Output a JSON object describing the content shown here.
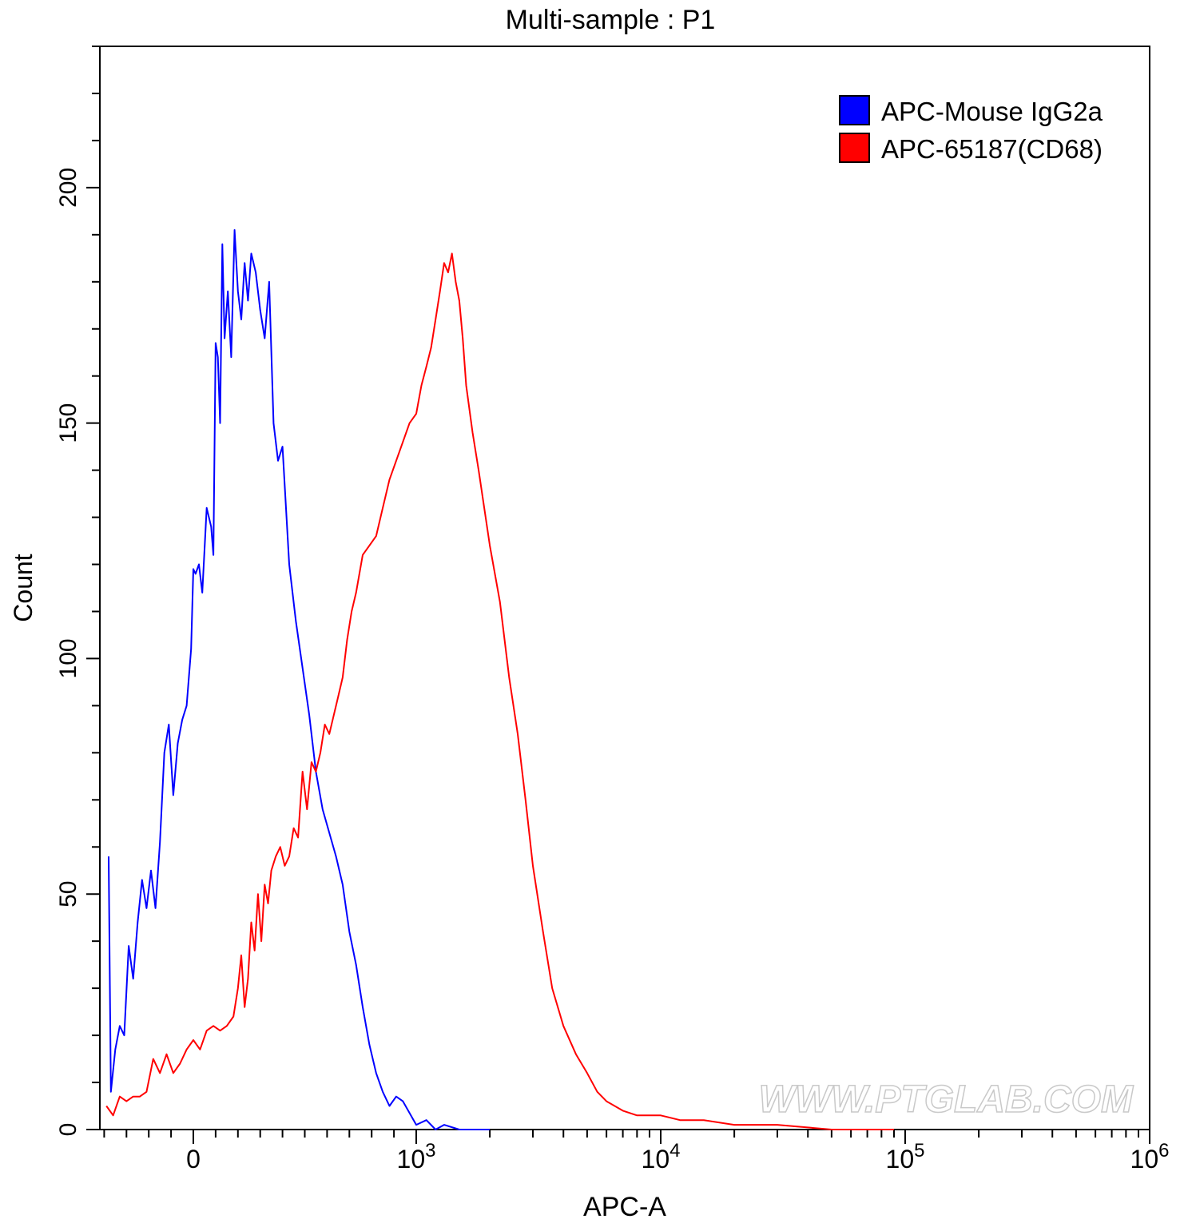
{
  "chart_data": {
    "type": "line",
    "title": "Multi-sample : P1",
    "xlabel": "APC-A",
    "ylabel": "Count",
    "x_scale": "biexponential (linear near 0, log above 10^3)",
    "x_ticks": [
      {
        "value": 0,
        "label": "0"
      },
      {
        "value": 1000,
        "base": "10",
        "exp": "3"
      },
      {
        "value": 10000,
        "base": "10",
        "exp": "4"
      },
      {
        "value": 100000,
        "base": "10",
        "exp": "5"
      },
      {
        "value": 1000000,
        "base": "10",
        "exp": "6"
      }
    ],
    "ylim": [
      0,
      230
    ],
    "y_ticks": [
      "0",
      "50",
      "100",
      "150",
      "200"
    ],
    "legend_position": "top-right",
    "grid": false,
    "series": [
      {
        "name": "APC-Mouse IgG2a",
        "color": "#0000ff",
        "points": [
          [
            -380,
            58
          ],
          [
            -370,
            8
          ],
          [
            -350,
            17
          ],
          [
            -330,
            22
          ],
          [
            -310,
            20
          ],
          [
            -290,
            39
          ],
          [
            -270,
            32
          ],
          [
            -250,
            44
          ],
          [
            -230,
            53
          ],
          [
            -210,
            47
          ],
          [
            -190,
            55
          ],
          [
            -170,
            47
          ],
          [
            -150,
            61
          ],
          [
            -130,
            80
          ],
          [
            -110,
            86
          ],
          [
            -90,
            71
          ],
          [
            -70,
            82
          ],
          [
            -50,
            87
          ],
          [
            -30,
            90
          ],
          [
            -10,
            102
          ],
          [
            0,
            119
          ],
          [
            10,
            118
          ],
          [
            25,
            120
          ],
          [
            40,
            114
          ],
          [
            60,
            132
          ],
          [
            80,
            128
          ],
          [
            90,
            122
          ],
          [
            100,
            167
          ],
          [
            110,
            164
          ],
          [
            120,
            150
          ],
          [
            130,
            188
          ],
          [
            140,
            168
          ],
          [
            155,
            178
          ],
          [
            170,
            164
          ],
          [
            185,
            191
          ],
          [
            200,
            178
          ],
          [
            215,
            172
          ],
          [
            230,
            184
          ],
          [
            245,
            176
          ],
          [
            260,
            186
          ],
          [
            280,
            182
          ],
          [
            300,
            174
          ],
          [
            320,
            168
          ],
          [
            340,
            180
          ],
          [
            360,
            150
          ],
          [
            380,
            142
          ],
          [
            400,
            145
          ],
          [
            430,
            120
          ],
          [
            460,
            108
          ],
          [
            490,
            98
          ],
          [
            520,
            88
          ],
          [
            550,
            76
          ],
          [
            580,
            68
          ],
          [
            610,
            63
          ],
          [
            640,
            58
          ],
          [
            670,
            52
          ],
          [
            700,
            42
          ],
          [
            730,
            35
          ],
          [
            760,
            26
          ],
          [
            790,
            18
          ],
          [
            820,
            12
          ],
          [
            850,
            8
          ],
          [
            880,
            5
          ],
          [
            910,
            7
          ],
          [
            940,
            6
          ],
          [
            1000,
            1
          ],
          [
            1100,
            2
          ],
          [
            1200,
            0
          ],
          [
            1300,
            1
          ],
          [
            1500,
            0
          ],
          [
            2000,
            0
          ]
        ]
      },
      {
        "name": "APC-65187(CD68)",
        "color": "#ff0000",
        "points": [
          [
            -390,
            5
          ],
          [
            -360,
            3
          ],
          [
            -330,
            7
          ],
          [
            -300,
            6
          ],
          [
            -270,
            7
          ],
          [
            -240,
            7
          ],
          [
            -210,
            8
          ],
          [
            -180,
            15
          ],
          [
            -150,
            12
          ],
          [
            -120,
            16
          ],
          [
            -90,
            12
          ],
          [
            -60,
            14
          ],
          [
            -30,
            17
          ],
          [
            0,
            19
          ],
          [
            30,
            17
          ],
          [
            60,
            21
          ],
          [
            90,
            22
          ],
          [
            120,
            21
          ],
          [
            150,
            22
          ],
          [
            180,
            24
          ],
          [
            200,
            30
          ],
          [
            215,
            37
          ],
          [
            230,
            26
          ],
          [
            245,
            32
          ],
          [
            260,
            44
          ],
          [
            275,
            38
          ],
          [
            290,
            50
          ],
          [
            305,
            40
          ],
          [
            320,
            52
          ],
          [
            335,
            48
          ],
          [
            350,
            55
          ],
          [
            370,
            58
          ],
          [
            390,
            60
          ],
          [
            410,
            56
          ],
          [
            430,
            58
          ],
          [
            450,
            64
          ],
          [
            470,
            62
          ],
          [
            490,
            76
          ],
          [
            510,
            68
          ],
          [
            530,
            78
          ],
          [
            550,
            76
          ],
          [
            570,
            80
          ],
          [
            590,
            86
          ],
          [
            610,
            84
          ],
          [
            630,
            88
          ],
          [
            650,
            92
          ],
          [
            670,
            96
          ],
          [
            690,
            104
          ],
          [
            710,
            110
          ],
          [
            730,
            114
          ],
          [
            760,
            122
          ],
          [
            790,
            124
          ],
          [
            820,
            126
          ],
          [
            850,
            132
          ],
          [
            880,
            138
          ],
          [
            910,
            142
          ],
          [
            940,
            146
          ],
          [
            970,
            150
          ],
          [
            1000,
            152
          ],
          [
            1050,
            158
          ],
          [
            1100,
            162
          ],
          [
            1150,
            166
          ],
          [
            1200,
            172
          ],
          [
            1250,
            178
          ],
          [
            1300,
            184
          ],
          [
            1350,
            182
          ],
          [
            1400,
            186
          ],
          [
            1450,
            180
          ],
          [
            1500,
            176
          ],
          [
            1550,
            168
          ],
          [
            1600,
            158
          ],
          [
            1700,
            148
          ],
          [
            1800,
            140
          ],
          [
            2000,
            124
          ],
          [
            2200,
            112
          ],
          [
            2400,
            96
          ],
          [
            2600,
            84
          ],
          [
            2800,
            70
          ],
          [
            3000,
            56
          ],
          [
            3300,
            42
          ],
          [
            3600,
            30
          ],
          [
            4000,
            22
          ],
          [
            4500,
            16
          ],
          [
            5000,
            12
          ],
          [
            5500,
            8
          ],
          [
            6000,
            6
          ],
          [
            7000,
            4
          ],
          [
            8000,
            3
          ],
          [
            10000,
            3
          ],
          [
            12000,
            2
          ],
          [
            15000,
            2
          ],
          [
            20000,
            1
          ],
          [
            30000,
            1
          ],
          [
            50000,
            0
          ],
          [
            90000,
            0
          ]
        ]
      }
    ]
  },
  "watermark": "WWW.PTGLAB.COM"
}
